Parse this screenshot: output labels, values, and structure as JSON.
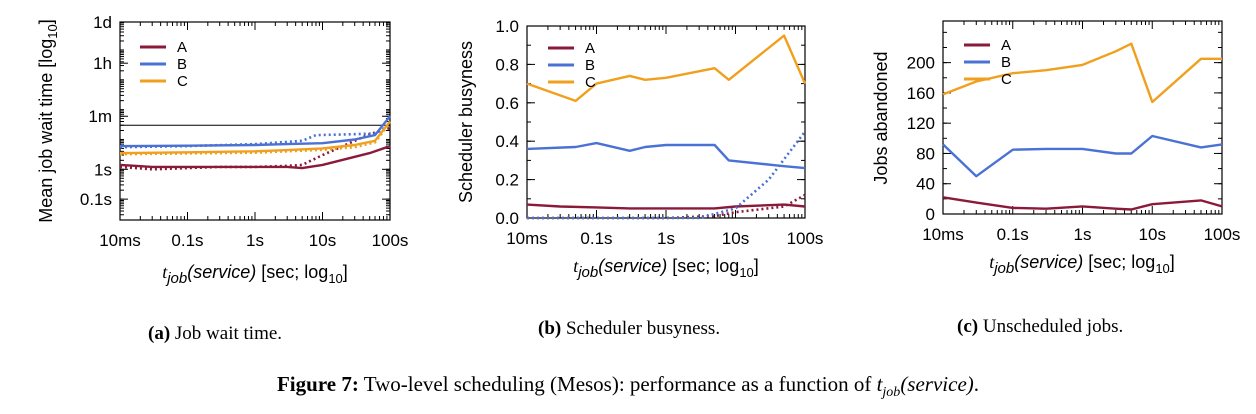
{
  "chart_data": [
    {
      "type": "line",
      "ylabel": "Mean job wait time [log",
      "ylabel_sub": "10",
      "ylabel_tail": "]",
      "xlabel": "t",
      "xlabel_sub": "job",
      "xlabel_service": "(service)",
      "xlabel_tail": " [sec; log",
      "xlabel_tail_sub": "10",
      "xlabel_end": "]",
      "x_scale": "log",
      "y_scale": "log",
      "x_ticks": [
        {
          "label": "10ms",
          "value": 0.01
        },
        {
          "label": "0.1s",
          "value": 0.1
        },
        {
          "label": "1s",
          "value": 1
        },
        {
          "label": "10s",
          "value": 10
        },
        {
          "label": "100s",
          "value": 100
        }
      ],
      "y_ticks": [
        {
          "label": "0.1s",
          "value": 0.1
        },
        {
          "label": "1s",
          "value": 1
        },
        {
          "label": "1m",
          "value": 60
        },
        {
          "label": "1h",
          "value": 3600
        },
        {
          "label": "1d",
          "value": 86400
        }
      ],
      "xlim": [
        0.01,
        100
      ],
      "ylim": [
        0.02,
        86400
      ],
      "legend_position": "top-left",
      "reference_line": 30,
      "series": [
        {
          "name": "A",
          "color": "#8b1a3a",
          "x": [
            0.01,
            0.03,
            0.1,
            0.3,
            1,
            3,
            5,
            10,
            50,
            100
          ],
          "y": [
            1.4,
            1.2,
            1.2,
            1.2,
            1.2,
            1.2,
            1.1,
            1.4,
            3.5,
            6
          ]
        },
        {
          "name": "A-dotted",
          "color": "#8b1a3a",
          "dashed": true,
          "x": [
            0.01,
            0.03,
            0.1,
            0.3,
            1,
            3,
            5,
            10,
            50,
            100
          ],
          "y": [
            1.2,
            1.0,
            1.1,
            1.2,
            1.2,
            1.3,
            1.4,
            3,
            15,
            24
          ]
        },
        {
          "name": "B",
          "color": "#4a72d4",
          "x": [
            0.01,
            0.1,
            1,
            3,
            10,
            30,
            60,
            100
          ],
          "y": [
            6,
            6.2,
            6.5,
            7,
            7.5,
            10,
            14,
            60
          ]
        },
        {
          "name": "B-dotted",
          "color": "#4a72d4",
          "dashed": true,
          "x": [
            0.01,
            0.1,
            1,
            5,
            8,
            30,
            60,
            100
          ],
          "y": [
            5.5,
            6,
            7,
            9,
            14,
            15,
            16,
            30
          ]
        },
        {
          "name": "C",
          "color": "#f0a01e",
          "x": [
            0.01,
            0.1,
            1,
            3,
            10,
            30,
            60,
            100
          ],
          "y": [
            3.5,
            3.7,
            4,
            4.4,
            5,
            6.5,
            9,
            40
          ]
        },
        {
          "name": "C-dotted",
          "color": "#f0a01e",
          "dashed": true,
          "x": [
            0.01,
            0.1,
            1,
            3,
            10,
            30,
            60,
            100
          ],
          "y": [
            3.2,
            3.4,
            3.6,
            4,
            4.5,
            5.5,
            8,
            36
          ]
        }
      ],
      "caption_label": "(a)",
      "caption_text": " Job wait time."
    },
    {
      "type": "line",
      "ylabel": "Scheduler busyness",
      "xlabel": "t",
      "xlabel_sub": "job",
      "xlabel_service": "(service)",
      "xlabel_tail": " [sec; log",
      "xlabel_tail_sub": "10",
      "xlabel_end": "]",
      "x_scale": "log",
      "y_scale": "linear",
      "x_ticks": [
        {
          "label": "10ms",
          "value": 0.01
        },
        {
          "label": "0.1s",
          "value": 0.1
        },
        {
          "label": "1s",
          "value": 1
        },
        {
          "label": "10s",
          "value": 10
        },
        {
          "label": "100s",
          "value": 100
        }
      ],
      "y_ticks": [
        {
          "label": "0.0",
          "value": 0
        },
        {
          "label": "0.2",
          "value": 0.2
        },
        {
          "label": "0.4",
          "value": 0.4
        },
        {
          "label": "0.6",
          "value": 0.6
        },
        {
          "label": "0.8",
          "value": 0.8
        },
        {
          "label": "1.0",
          "value": 1.0
        }
      ],
      "xlim": [
        0.01,
        100
      ],
      "ylim": [
        0,
        1.0
      ],
      "legend_position": "top-left",
      "series": [
        {
          "name": "A",
          "color": "#8b1a3a",
          "x": [
            0.01,
            0.03,
            0.1,
            0.3,
            1,
            3,
            5,
            10,
            50,
            100
          ],
          "y": [
            0.07,
            0.06,
            0.055,
            0.05,
            0.05,
            0.05,
            0.05,
            0.06,
            0.07,
            0.06
          ]
        },
        {
          "name": "A-dotted",
          "color": "#8b1a3a",
          "dashed": true,
          "x": [
            0.01,
            1,
            5,
            10,
            50,
            100
          ],
          "y": [
            0.0,
            0.0,
            0.01,
            0.03,
            0.06,
            0.12
          ]
        },
        {
          "name": "B",
          "color": "#4a72d4",
          "x": [
            0.01,
            0.05,
            0.1,
            0.3,
            0.5,
            1,
            5,
            8,
            50,
            100
          ],
          "y": [
            0.36,
            0.37,
            0.39,
            0.35,
            0.37,
            0.38,
            0.38,
            0.3,
            0.27,
            0.26
          ]
        },
        {
          "name": "B-dotted",
          "color": "#4a72d4",
          "dashed": true,
          "x": [
            0.01,
            1,
            3,
            10,
            30,
            100
          ],
          "y": [
            0.0,
            0.0,
            0.0,
            0.05,
            0.2,
            0.45
          ]
        },
        {
          "name": "C",
          "color": "#f0a01e",
          "x": [
            0.01,
            0.05,
            0.1,
            0.3,
            0.5,
            1,
            5,
            8,
            50,
            100
          ],
          "y": [
            0.7,
            0.61,
            0.7,
            0.74,
            0.72,
            0.73,
            0.78,
            0.72,
            0.95,
            0.7
          ]
        }
      ],
      "caption_label": "(b)",
      "caption_text": " Scheduler busyness."
    },
    {
      "type": "line",
      "ylabel": "Jobs abandoned",
      "xlabel": "t",
      "xlabel_sub": "job",
      "xlabel_service": "(service)",
      "xlabel_tail": " [sec; log",
      "xlabel_tail_sub": "10",
      "xlabel_end": "]",
      "x_scale": "log",
      "y_scale": "linear",
      "x_ticks": [
        {
          "label": "10ms",
          "value": 0.01
        },
        {
          "label": "0.1s",
          "value": 0.1
        },
        {
          "label": "1s",
          "value": 1
        },
        {
          "label": "10s",
          "value": 10
        },
        {
          "label": "100s",
          "value": 100
        }
      ],
      "y_ticks": [
        {
          "label": "0",
          "value": 0
        },
        {
          "label": "40",
          "value": 40
        },
        {
          "label": "80",
          "value": 80
        },
        {
          "label": "120",
          "value": 120
        },
        {
          "label": "160",
          "value": 160
        },
        {
          "label": "200",
          "value": 200
        }
      ],
      "xlim": [
        0.01,
        100
      ],
      "ylim": [
        0,
        255
      ],
      "legend_position": "top-left",
      "series": [
        {
          "name": "A",
          "color": "#8b1a3a",
          "x": [
            0.01,
            0.03,
            0.1,
            0.3,
            1,
            3,
            5,
            10,
            50,
            100
          ],
          "y": [
            22,
            15,
            8,
            7,
            10,
            7,
            6,
            13,
            18,
            10
          ]
        },
        {
          "name": "B",
          "color": "#4a72d4",
          "x": [
            0.01,
            0.03,
            0.1,
            0.3,
            1,
            3,
            5,
            10,
            50,
            100
          ],
          "y": [
            92,
            50,
            85,
            86,
            86,
            80,
            80,
            103,
            88,
            92
          ]
        },
        {
          "name": "C",
          "color": "#f0a01e",
          "x": [
            0.01,
            0.03,
            0.1,
            0.3,
            1,
            3,
            5,
            10,
            50,
            100
          ],
          "y": [
            158,
            175,
            186,
            190,
            197,
            215,
            225,
            148,
            205,
            205
          ]
        }
      ],
      "caption_label": "(c)",
      "caption_text": " Unscheduled jobs."
    }
  ],
  "figure_caption": {
    "label": "Figure 7:",
    "text": " Two-level scheduling (Mesos): performance as a function of ",
    "math": "t",
    "math_sub": "job",
    "math_tail": "(service)",
    "end": "."
  }
}
